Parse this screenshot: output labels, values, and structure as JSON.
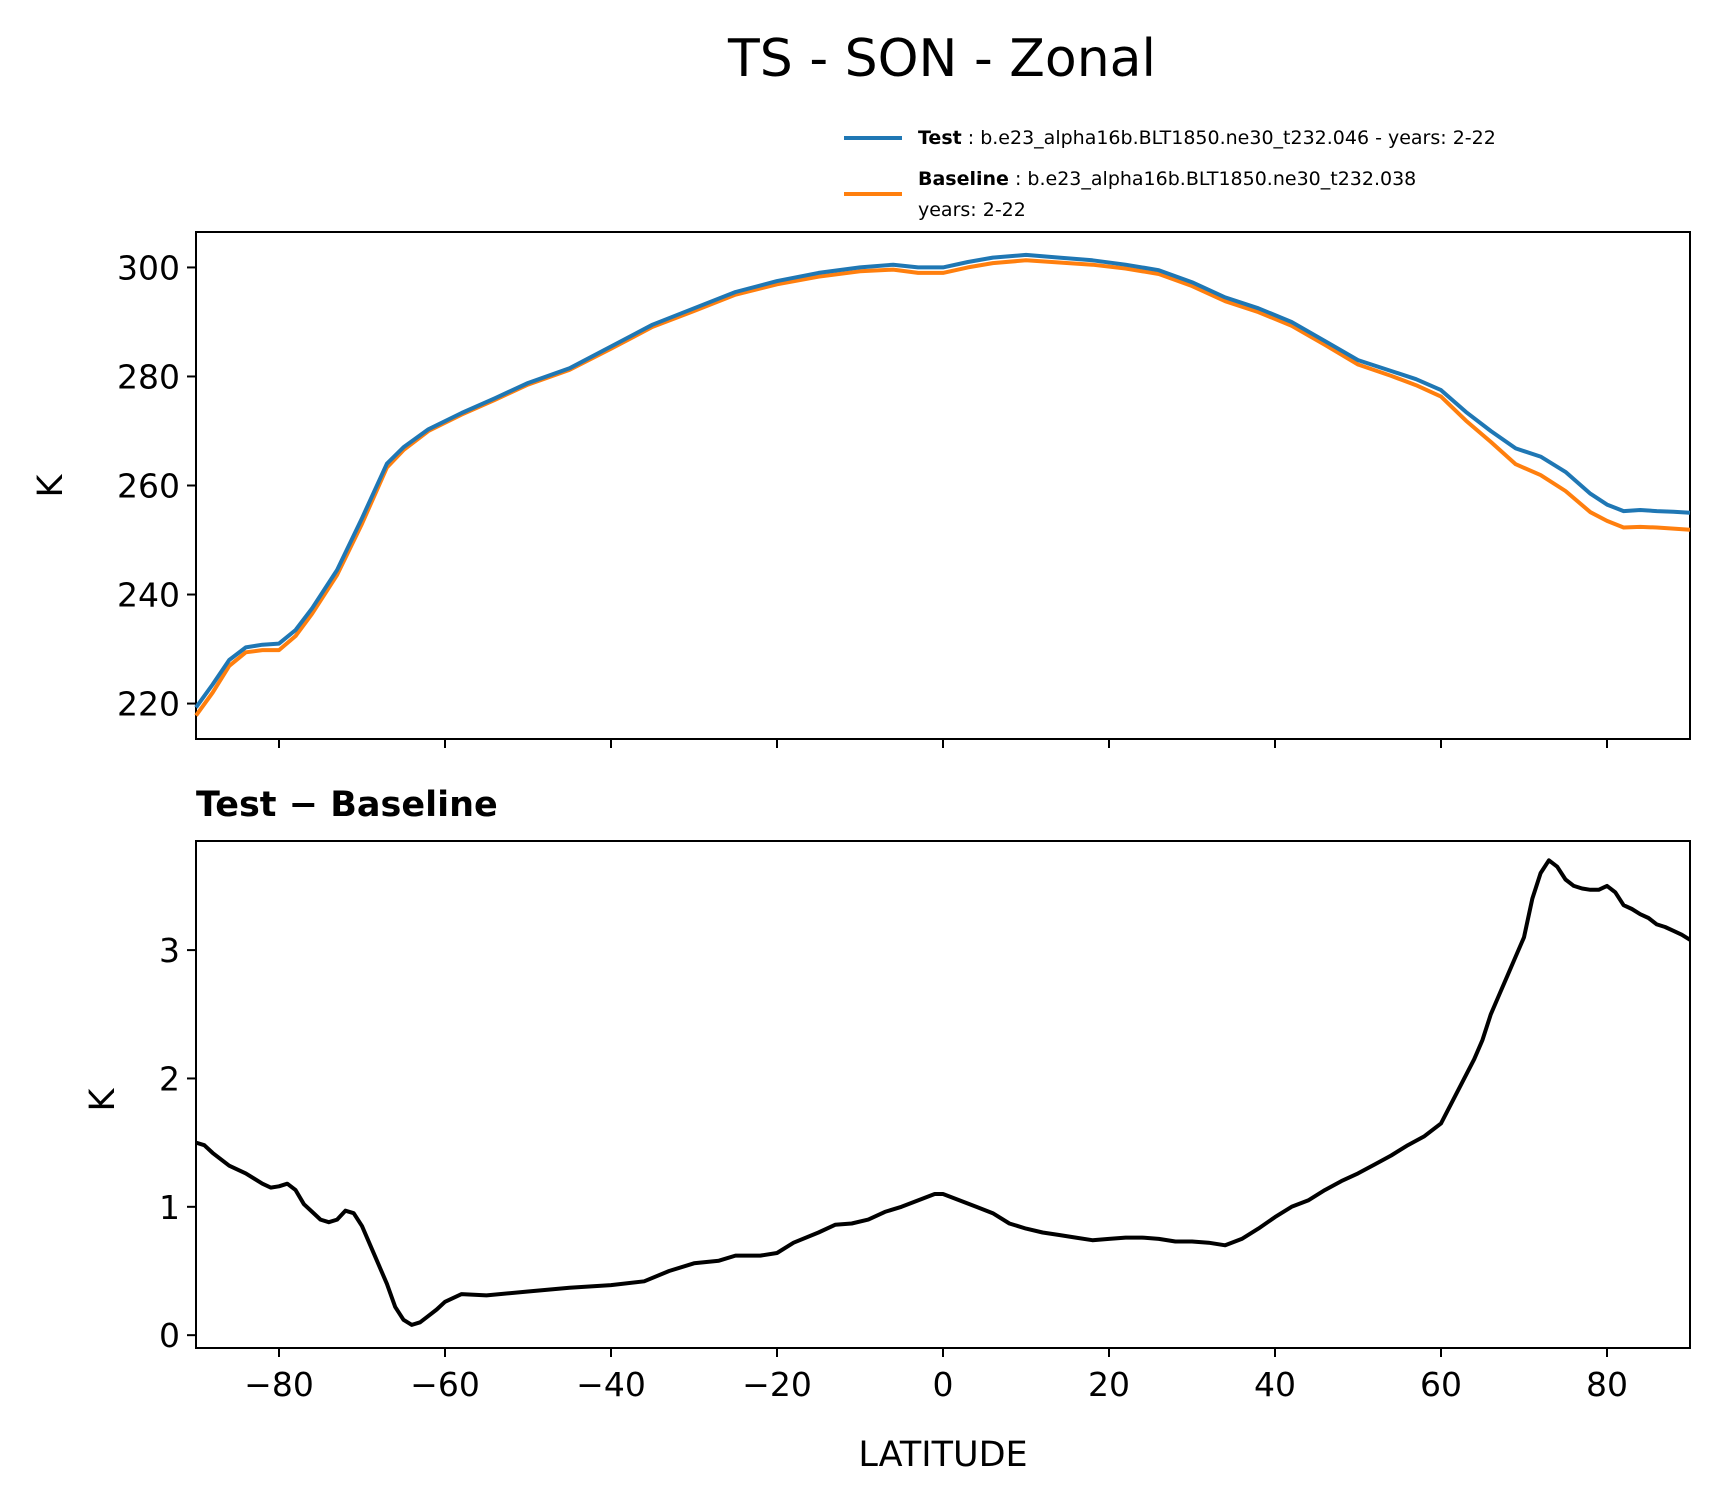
{
  "title": "TS - SON - Zonal",
  "legend": {
    "test_bold": "Test",
    "test_text": ": b.e23_alpha16b.BLT1850.ne30_t232.046 - years: 2-22",
    "base_bold": "Baseline",
    "base_text": ": b.e23_alpha16b.BLT1850.ne30_t232.038",
    "base_line2": "years: 2-22"
  },
  "colors": {
    "test": "#1f77b4",
    "baseline": "#ff7f0e",
    "diff": "#000000"
  },
  "chart_data": [
    {
      "type": "line",
      "panel": "top",
      "ylabel": "K",
      "xlim": [
        -90,
        90
      ],
      "ylim": [
        213.5,
        306.5
      ],
      "yticks": [
        220,
        240,
        260,
        280,
        300
      ],
      "series": [
        {
          "name": "Test",
          "x": [
            -90,
            -88,
            -86,
            -84,
            -82,
            -80,
            -78,
            -76,
            -73,
            -70,
            -67,
            -65,
            -62,
            -58,
            -54,
            -50,
            -45,
            -40,
            -35,
            -30,
            -25,
            -20,
            -15,
            -10,
            -6,
            -3,
            0,
            3,
            6,
            10,
            14,
            18,
            22,
            26,
            30,
            34,
            38,
            42,
            46,
            50,
            54,
            57,
            60,
            63,
            66,
            69,
            72,
            75,
            78,
            80,
            82,
            84,
            86,
            88,
            90
          ],
          "values": [
            219.3,
            223.5,
            228.0,
            230.3,
            230.8,
            231.0,
            233.5,
            237.5,
            244.5,
            254.0,
            264.0,
            267.0,
            270.3,
            273.3,
            276.0,
            278.8,
            281.5,
            285.5,
            289.5,
            292.5,
            295.5,
            297.5,
            299.0,
            300.0,
            300.5,
            300.0,
            300.0,
            301.0,
            301.8,
            302.3,
            301.8,
            301.3,
            300.5,
            299.5,
            297.3,
            294.5,
            292.5,
            290.0,
            286.5,
            283.0,
            281.0,
            279.5,
            277.5,
            273.5,
            270.0,
            266.8,
            265.3,
            262.5,
            258.5,
            256.5,
            255.3,
            255.5,
            255.3,
            255.2,
            255.0
          ]
        },
        {
          "name": "Baseline",
          "x": [
            -90,
            -88,
            -86,
            -84,
            -82,
            -80,
            -78,
            -76,
            -73,
            -70,
            -67,
            -65,
            -62,
            -58,
            -54,
            -50,
            -45,
            -40,
            -35,
            -30,
            -25,
            -20,
            -15,
            -10,
            -6,
            -3,
            0,
            3,
            6,
            10,
            14,
            18,
            22,
            26,
            30,
            34,
            38,
            42,
            46,
            50,
            54,
            57,
            60,
            63,
            66,
            69,
            72,
            75,
            78,
            80,
            82,
            84,
            86,
            88,
            90
          ],
          "values": [
            217.8,
            222.0,
            226.9,
            229.4,
            229.8,
            229.8,
            232.4,
            236.5,
            243.6,
            253.0,
            263.3,
            266.5,
            270.0,
            273.0,
            275.7,
            278.5,
            281.2,
            285.1,
            289.1,
            292.0,
            295.0,
            296.9,
            298.3,
            299.3,
            299.6,
            299.0,
            299.0,
            300.0,
            300.8,
            301.3,
            300.9,
            300.5,
            299.8,
            298.8,
            296.6,
            293.8,
            291.8,
            289.3,
            285.8,
            282.2,
            280.1,
            278.4,
            276.3,
            271.9,
            268.0,
            263.9,
            261.9,
            259.0,
            255.1,
            253.5,
            252.3,
            252.4,
            252.3,
            252.1,
            251.9
          ]
        }
      ]
    },
    {
      "type": "line",
      "panel": "bottom",
      "title": "Test − Baseline",
      "xlabel": "LATITUDE",
      "ylabel": "K",
      "xlim": [
        -90,
        90
      ],
      "ylim": [
        -0.1,
        3.85
      ],
      "yticks": [
        0,
        1,
        2,
        3
      ],
      "xticks": [
        -80,
        -60,
        -40,
        -20,
        0,
        20,
        40,
        60,
        80
      ],
      "xtick_labels": [
        "−80",
        "−60",
        "−40",
        "−20",
        "0",
        "20",
        "40",
        "60",
        "80"
      ],
      "series": [
        {
          "name": "Test − Baseline",
          "x": [
            -90,
            -89,
            -88,
            -86,
            -84,
            -82,
            -81,
            -80,
            -79,
            -78,
            -77,
            -76,
            -75,
            -74,
            -73,
            -72,
            -71,
            -70,
            -69,
            -68,
            -67,
            -66,
            -65,
            -64,
            -63,
            -62,
            -61,
            -60,
            -58,
            -55,
            -50,
            -45,
            -40,
            -36,
            -33,
            -30,
            -27,
            -25,
            -22,
            -20,
            -18,
            -15,
            -13,
            -11,
            -9,
            -7,
            -5,
            -3,
            -1,
            0,
            2,
            4,
            6,
            8,
            10,
            12,
            14,
            16,
            18,
            20,
            22,
            24,
            26,
            28,
            30,
            32,
            34,
            36,
            38,
            40,
            42,
            44,
            46,
            48,
            50,
            52,
            54,
            56,
            58,
            60,
            62,
            64,
            65,
            66,
            67,
            68,
            69,
            70,
            71,
            72,
            73,
            74,
            75,
            76,
            77,
            78,
            79,
            80,
            81,
            82,
            83,
            84,
            85,
            86,
            87,
            88,
            89,
            90
          ],
          "values": [
            1.5,
            1.48,
            1.42,
            1.32,
            1.26,
            1.18,
            1.15,
            1.16,
            1.18,
            1.13,
            1.02,
            0.96,
            0.9,
            0.88,
            0.9,
            0.97,
            0.95,
            0.85,
            0.7,
            0.55,
            0.4,
            0.22,
            0.12,
            0.08,
            0.1,
            0.15,
            0.2,
            0.26,
            0.32,
            0.31,
            0.34,
            0.37,
            0.39,
            0.42,
            0.5,
            0.56,
            0.58,
            0.62,
            0.62,
            0.64,
            0.72,
            0.8,
            0.86,
            0.87,
            0.9,
            0.96,
            1.0,
            1.05,
            1.1,
            1.1,
            1.05,
            1.0,
            0.95,
            0.87,
            0.83,
            0.8,
            0.78,
            0.76,
            0.74,
            0.75,
            0.76,
            0.76,
            0.75,
            0.73,
            0.73,
            0.72,
            0.7,
            0.75,
            0.83,
            0.92,
            1.0,
            1.05,
            1.13,
            1.2,
            1.26,
            1.33,
            1.4,
            1.48,
            1.55,
            1.65,
            1.9,
            2.15,
            2.3,
            2.5,
            2.65,
            2.8,
            2.95,
            3.1,
            3.4,
            3.6,
            3.7,
            3.65,
            3.55,
            3.5,
            3.48,
            3.47,
            3.47,
            3.5,
            3.45,
            3.35,
            3.32,
            3.28,
            3.25,
            3.2,
            3.18,
            3.15,
            3.12,
            3.08
          ]
        }
      ]
    }
  ]
}
